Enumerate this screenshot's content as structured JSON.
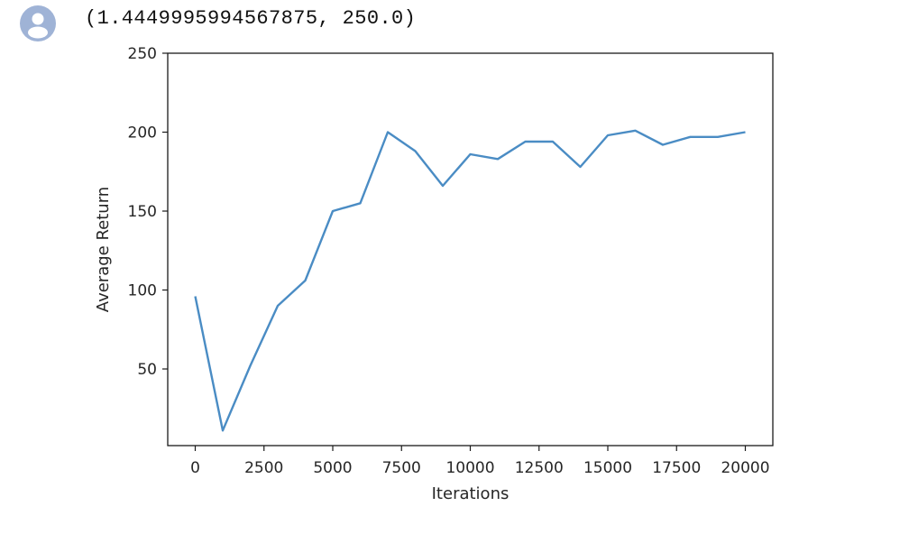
{
  "cell": {
    "avatar_icon": "user-avatar-icon",
    "output_text": "(1.4449995994567875, 250.0)"
  },
  "colors": {
    "line": "#4a8cc4",
    "axes": "#1a1a1a",
    "avatar": "#9fb3d6"
  },
  "chart_data": {
    "type": "line",
    "title": "",
    "xlabel": "Iterations",
    "ylabel": "Average Return",
    "xlim": [
      -1000,
      21000
    ],
    "ylim": [
      1.4449995994567875,
      250.0
    ],
    "x_ticks": [
      0,
      2500,
      5000,
      7500,
      10000,
      12500,
      15000,
      17500,
      20000
    ],
    "y_ticks": [
      50,
      100,
      150,
      200,
      250
    ],
    "grid": false,
    "legend": "none",
    "series": [
      {
        "x": [
          0,
          1000,
          2000,
          3000,
          4000,
          5000,
          6000,
          7000,
          8000,
          9000,
          10000,
          11000,
          12000,
          13000,
          14000,
          15000,
          16000,
          17000,
          18000,
          19000,
          20000
        ],
        "y": [
          96,
          11,
          52,
          90,
          106,
          150,
          155,
          200,
          188,
          166,
          186,
          183,
          194,
          194,
          178,
          198,
          201,
          192,
          197,
          197,
          200
        ]
      }
    ]
  }
}
